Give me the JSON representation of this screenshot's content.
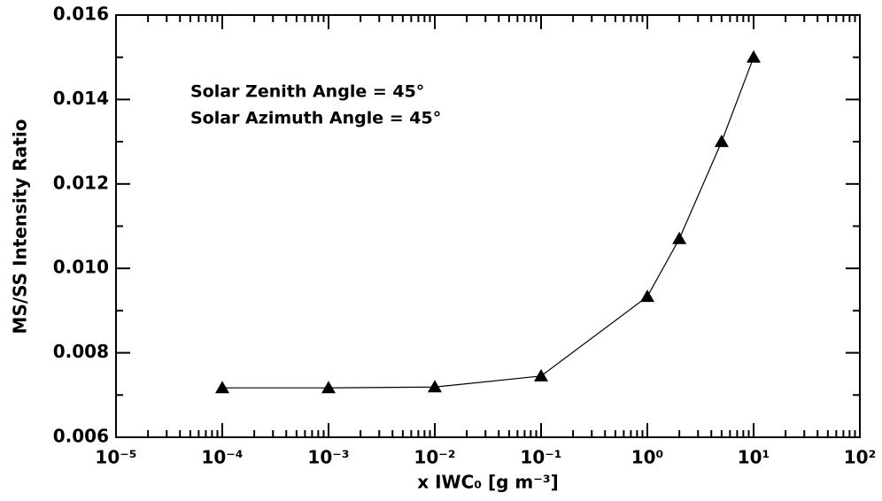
{
  "chart_data": {
    "type": "line",
    "xlabel": "x IWC₀ [g m⁻³]",
    "ylabel": "MS/SS Intensity Ratio",
    "annotations": [
      "Solar Zenith Angle = 45°",
      "Solar Azimuth Angle = 45°"
    ],
    "log_x": true,
    "minor_ticks": true,
    "color": "#000000",
    "marker": "triangle",
    "x": [
      0.0001,
      0.001,
      0.01,
      0.1,
      1,
      2,
      5,
      10
    ],
    "values": [
      0.00717,
      0.00717,
      0.00719,
      0.00745,
      0.00933,
      0.0107,
      0.013,
      0.015
    ],
    "xlim": [
      1e-05,
      100
    ],
    "xticks": [
      {
        "value": 1e-05,
        "label": "10⁻⁵"
      },
      {
        "value": 0.0001,
        "label": "10⁻⁴"
      },
      {
        "value": 0.001,
        "label": "10⁻³"
      },
      {
        "value": 0.01,
        "label": "10⁻²"
      },
      {
        "value": 0.1,
        "label": "10⁻¹"
      },
      {
        "value": 1,
        "label": "10⁰"
      },
      {
        "value": 10,
        "label": "10¹"
      },
      {
        "value": 100,
        "label": "10²"
      }
    ],
    "ylim": [
      0.006,
      0.016
    ],
    "yticks": [
      0.006,
      0.008,
      {
        "value": 0.01,
        "label": "0.010"
      },
      0.012,
      0.014,
      0.016
    ]
  }
}
